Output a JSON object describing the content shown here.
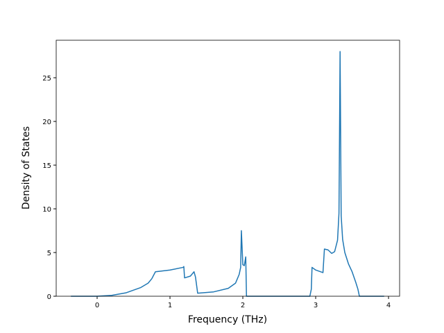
{
  "chart_data": {
    "type": "line",
    "xlabel": "Frequency (THz)",
    "ylabel": "Density of States",
    "x": [
      -0.36,
      0,
      0.2,
      0.4,
      0.6,
      0.7,
      0.75,
      0.8,
      1.0,
      1.18,
      1.19,
      1.2,
      1.28,
      1.33,
      1.35,
      1.38,
      1.6,
      1.8,
      1.9,
      1.95,
      1.97,
      1.98,
      2.0,
      2.02,
      2.04,
      2.05,
      2.92,
      2.94,
      2.95,
      3.0,
      3.1,
      3.12,
      3.17,
      3.22,
      3.26,
      3.3,
      3.32,
      3.335,
      3.35,
      3.37,
      3.4,
      3.45,
      3.5,
      3.55,
      3.58,
      3.6,
      3.94
    ],
    "series": [
      {
        "color": "#1f77b4",
        "values": [
          0,
          0,
          0.1,
          0.4,
          1.0,
          1.5,
          2.0,
          2.8,
          3.0,
          3.3,
          3.4,
          2.1,
          2.3,
          2.8,
          2.2,
          0.35,
          0.5,
          0.9,
          1.5,
          2.5,
          3.3,
          7.5,
          3.6,
          3.5,
          4.5,
          0,
          0,
          0.8,
          3.3,
          3.0,
          2.7,
          5.4,
          5.3,
          4.9,
          5.1,
          6.4,
          9.5,
          28.0,
          9.2,
          6.5,
          5.0,
          3.7,
          2.8,
          1.6,
          0.8,
          0,
          0
        ]
      }
    ],
    "xlim": [
      -0.562,
      4.152
    ],
    "ylim": [
      0,
      29.29
    ],
    "xticks": [
      0,
      1,
      2,
      3,
      4
    ],
    "yticks": [
      0,
      5,
      10,
      15,
      20,
      25
    ]
  }
}
